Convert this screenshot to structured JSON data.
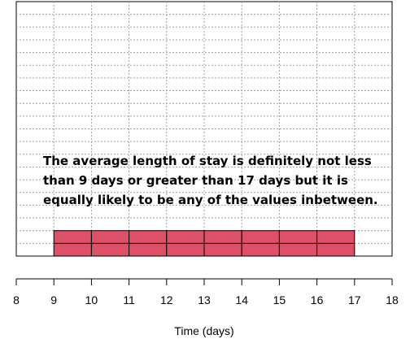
{
  "chart_data": {
    "type": "bar",
    "chart_kind": "probability-chips",
    "x": [
      9,
      10,
      11,
      12,
      13,
      14,
      15,
      16
    ],
    "values": [
      2,
      2,
      2,
      2,
      2,
      2,
      2,
      2
    ],
    "chips_per_bin": 2,
    "xlim": [
      8,
      18
    ],
    "ylim": [
      0,
      20
    ],
    "xticks": [
      "8",
      "9",
      "10",
      "11",
      "12",
      "13",
      "14",
      "15",
      "16",
      "17",
      "18"
    ],
    "xlabel": "Time (days)",
    "ylabel": "",
    "title": "",
    "grid": true,
    "grid_style": "dotted",
    "bar_color": "#dc5068",
    "bar_edge_color": "#000000",
    "grid_color": "#a0a0a0",
    "annotation": [
      "The average length of stay is definitely not less",
      "than 9 days or greater than 17 days but it is",
      "equally likely to be any of the values inbetween."
    ]
  }
}
